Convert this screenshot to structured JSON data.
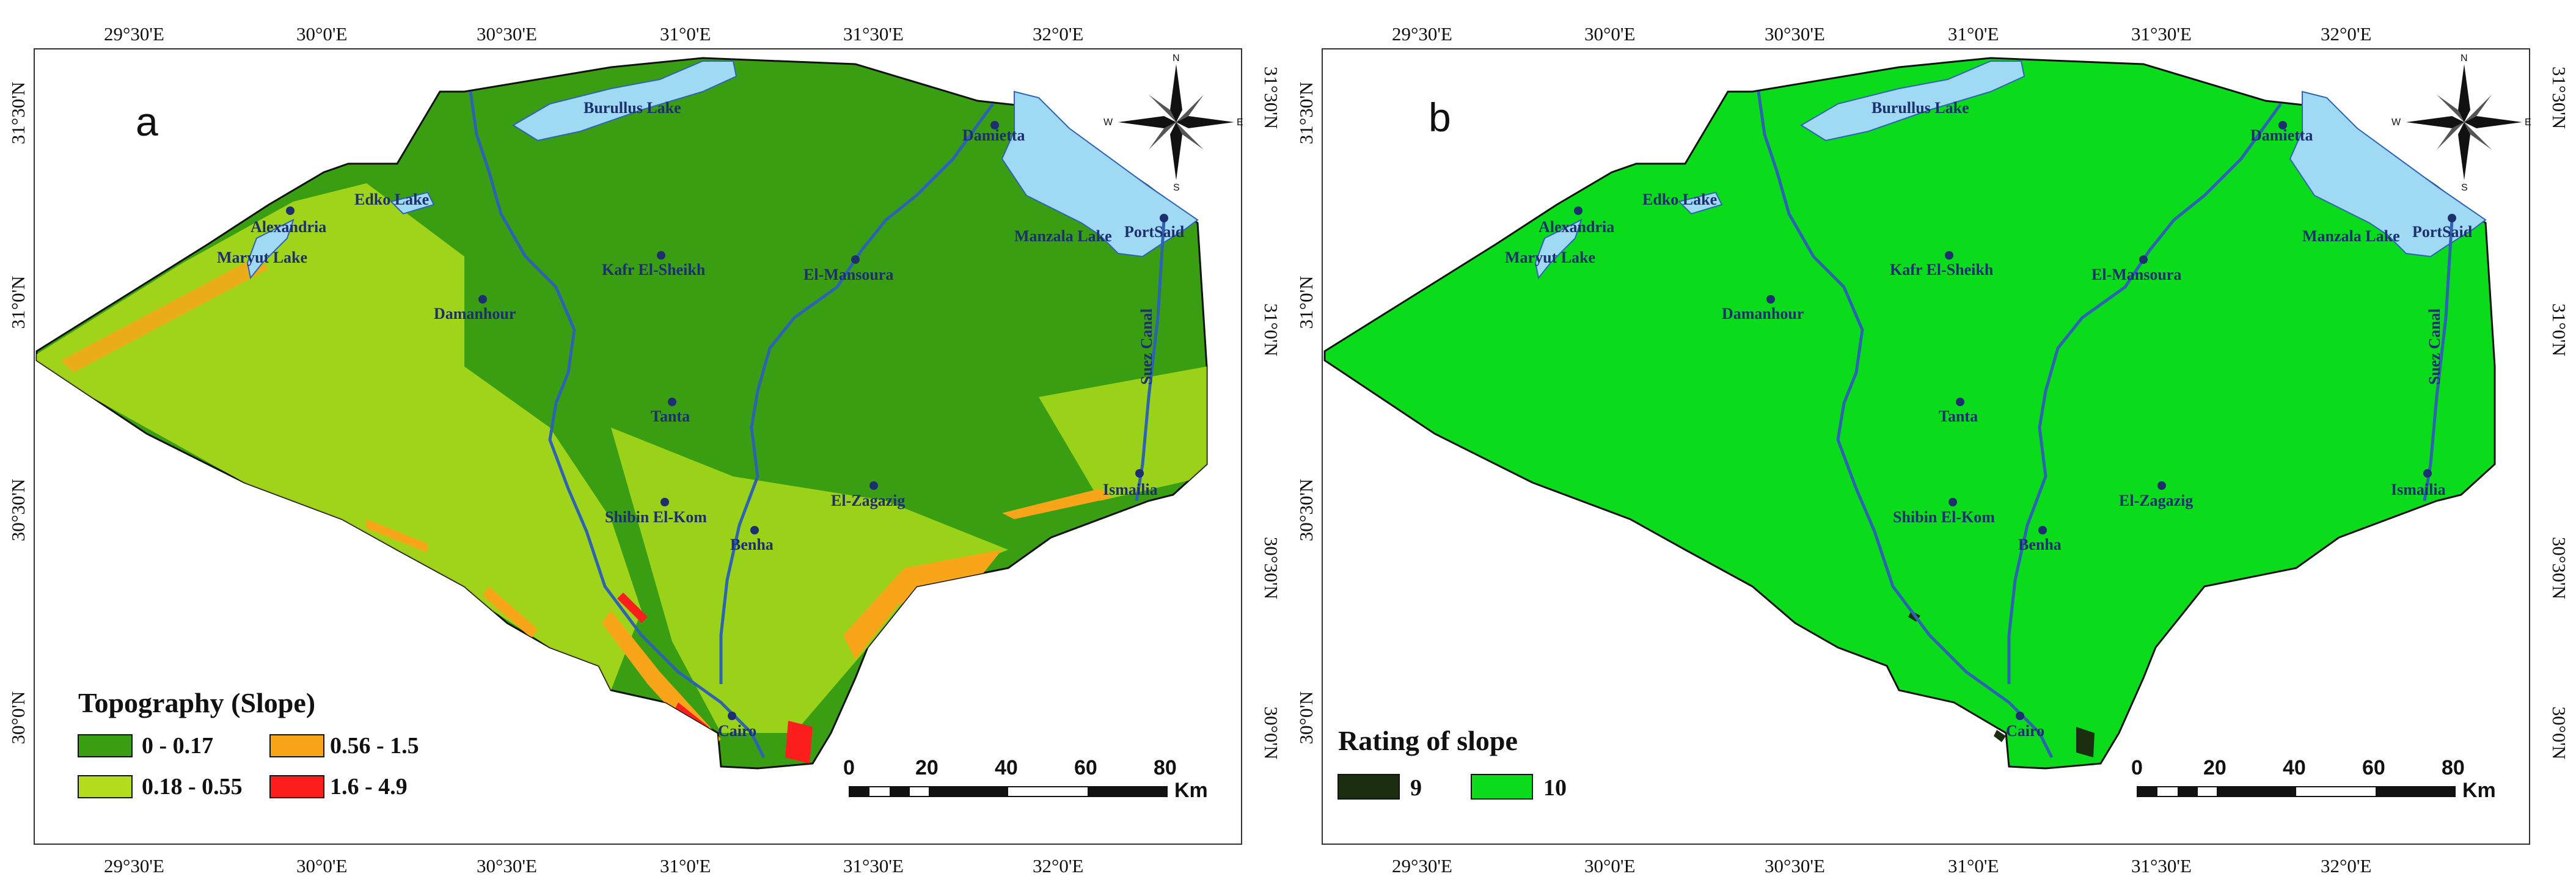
{
  "panels": [
    {
      "id": "a",
      "letter": "a",
      "legend": {
        "title": "Topography (Slope)",
        "classes": [
          {
            "label": "0 - 0.17",
            "color": "#3a9e12"
          },
          {
            "label": "0.56 - 1.5",
            "color": "#f8a51a"
          },
          {
            "label": "0.18 - 0.55",
            "color": "#b3dd1c"
          },
          {
            "label": "1.6 - 4.9",
            "color": "#ff1e1e"
          }
        ]
      }
    },
    {
      "id": "b",
      "letter": "b",
      "legend": {
        "title": "Rating of slope",
        "classes": [
          {
            "label": "9",
            "color": "#1c2e10"
          },
          {
            "label": "10",
            "color": "#0adc1c"
          }
        ]
      }
    }
  ],
  "ticks": {
    "top": [
      "29°30'E",
      "30°0'E",
      "30°30'E",
      "31°0'E",
      "31°30'E",
      "32°0'E"
    ],
    "bottom": [
      "29°30'E",
      "30°0'E",
      "30°30'E",
      "31°0'E",
      "31°30'E",
      "32°0'E"
    ],
    "left": [
      "31°30'N",
      "31°0'N",
      "30°30'N",
      "30°0'N"
    ],
    "right": [
      "31°30'N",
      "31°0'N",
      "30°30'N",
      "30°0'N"
    ]
  },
  "places": {
    "burullus": "Burullus Lake",
    "damietta": "Damietta",
    "edko": "Edko Lake",
    "alexandria": "Alexandria",
    "maryut": "Maryut Lake",
    "manzala": "Manzala Lake",
    "portsaid": "PortSaid",
    "kafr": "Kafr El-Sheikh",
    "mansoura": "El-Mansoura",
    "damanhour": "Damanhour",
    "suez": "Suez Canal",
    "tanta": "Tanta",
    "ismailia": "Ismailia",
    "shibin": "Shibin El-Kom",
    "zagazig": "El-Zagazig",
    "benha": "Benha",
    "cairo": "Cairo"
  },
  "compass": {
    "n": "N",
    "s": "S",
    "e": "E",
    "w": "W"
  },
  "scale": {
    "labels": [
      "0",
      "20",
      "40",
      "60",
      "80"
    ],
    "unit": "Km"
  },
  "colors": {
    "water": "#9fd9f3",
    "river": "#2e63b4",
    "slope_low": "#3a9e12",
    "slope_mid": "#b3dd1c",
    "slope_high": "#f8a51a",
    "slope_max": "#ff1e1e",
    "rating_10": "#0adc1c",
    "rating_9": "#1c2e10"
  }
}
